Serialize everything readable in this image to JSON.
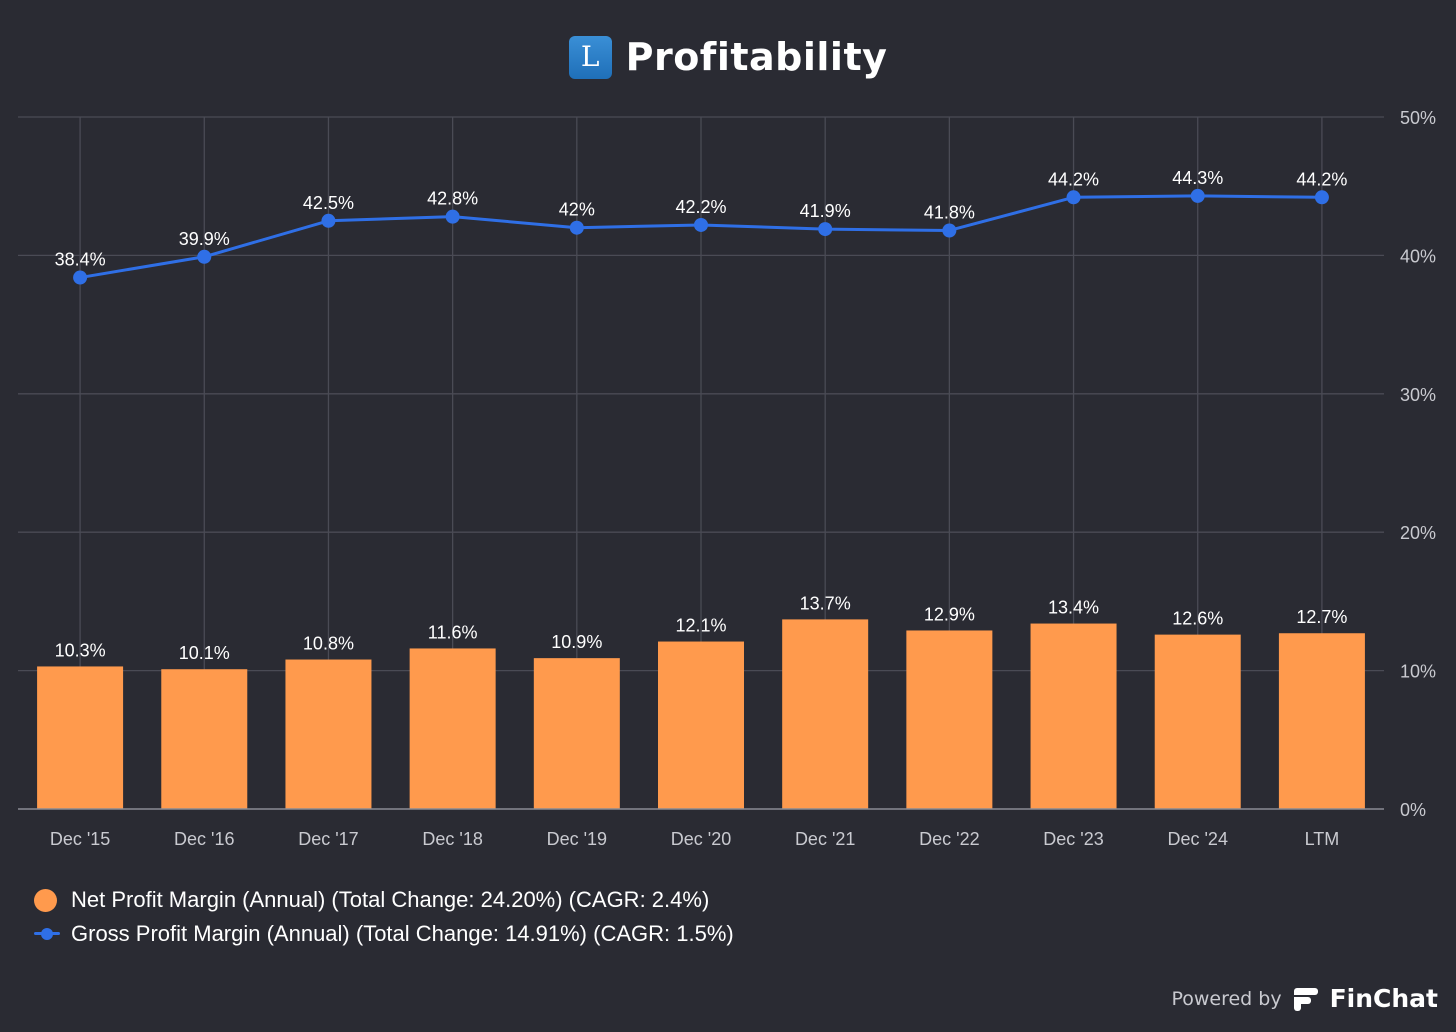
{
  "header": {
    "logo_letter": "L",
    "title": "Profitability"
  },
  "colors": {
    "background": "#2a2b33",
    "bar": "#ff9a4d",
    "line": "#2f6fe6",
    "grid": "#4a4b55",
    "axis_text": "#c9cad0",
    "label_text": "#ffffff"
  },
  "chart_data": {
    "type": "bar",
    "categories": [
      "Dec '15",
      "Dec '16",
      "Dec '17",
      "Dec '18",
      "Dec '19",
      "Dec '20",
      "Dec '21",
      "Dec '22",
      "Dec '23",
      "Dec '24",
      "LTM"
    ],
    "series": [
      {
        "name": "Net Profit Margin (Annual) (Total Change: 24.20%) (CAGR: 2.4%)",
        "type": "bar",
        "color": "#ff9a4d",
        "values": [
          10.3,
          10.1,
          10.8,
          11.6,
          10.9,
          12.1,
          13.7,
          12.9,
          13.4,
          12.6,
          12.7
        ],
        "labels": [
          "10.3%",
          "10.1%",
          "10.8%",
          "11.6%",
          "10.9%",
          "12.1%",
          "13.7%",
          "12.9%",
          "13.4%",
          "12.6%",
          "12.7%"
        ]
      },
      {
        "name": "Gross Profit Margin (Annual) (Total Change: 14.91%) (CAGR: 1.5%)",
        "type": "line",
        "color": "#2f6fe6",
        "values": [
          38.4,
          39.9,
          42.5,
          42.8,
          42.0,
          42.2,
          41.9,
          41.8,
          44.2,
          44.3,
          44.2
        ],
        "labels": [
          "38.4%",
          "39.9%",
          "42.5%",
          "42.8%",
          "42%",
          "42.2%",
          "41.9%",
          "41.8%",
          "44.2%",
          "44.3%",
          "44.2%"
        ]
      }
    ],
    "yaxis": {
      "position": "right",
      "ylim": [
        0,
        50
      ],
      "ticks": [
        0,
        10,
        20,
        30,
        40,
        50
      ],
      "tick_labels": [
        "0%",
        "10%",
        "20%",
        "30%",
        "40%",
        "50%"
      ]
    },
    "grid": true,
    "legend_position": "bottom-left"
  },
  "legend": {
    "items": [
      {
        "label": "Net Profit Margin (Annual) (Total Change: 24.20%) (CAGR: 2.4%)",
        "marker": "dot",
        "color": "#ff9a4d"
      },
      {
        "label": "Gross Profit Margin (Annual) (Total Change: 14.91%) (CAGR: 1.5%)",
        "marker": "line",
        "color": "#2f6fe6"
      }
    ]
  },
  "footer": {
    "powered_by": "Powered by",
    "brand": "FinChat"
  }
}
